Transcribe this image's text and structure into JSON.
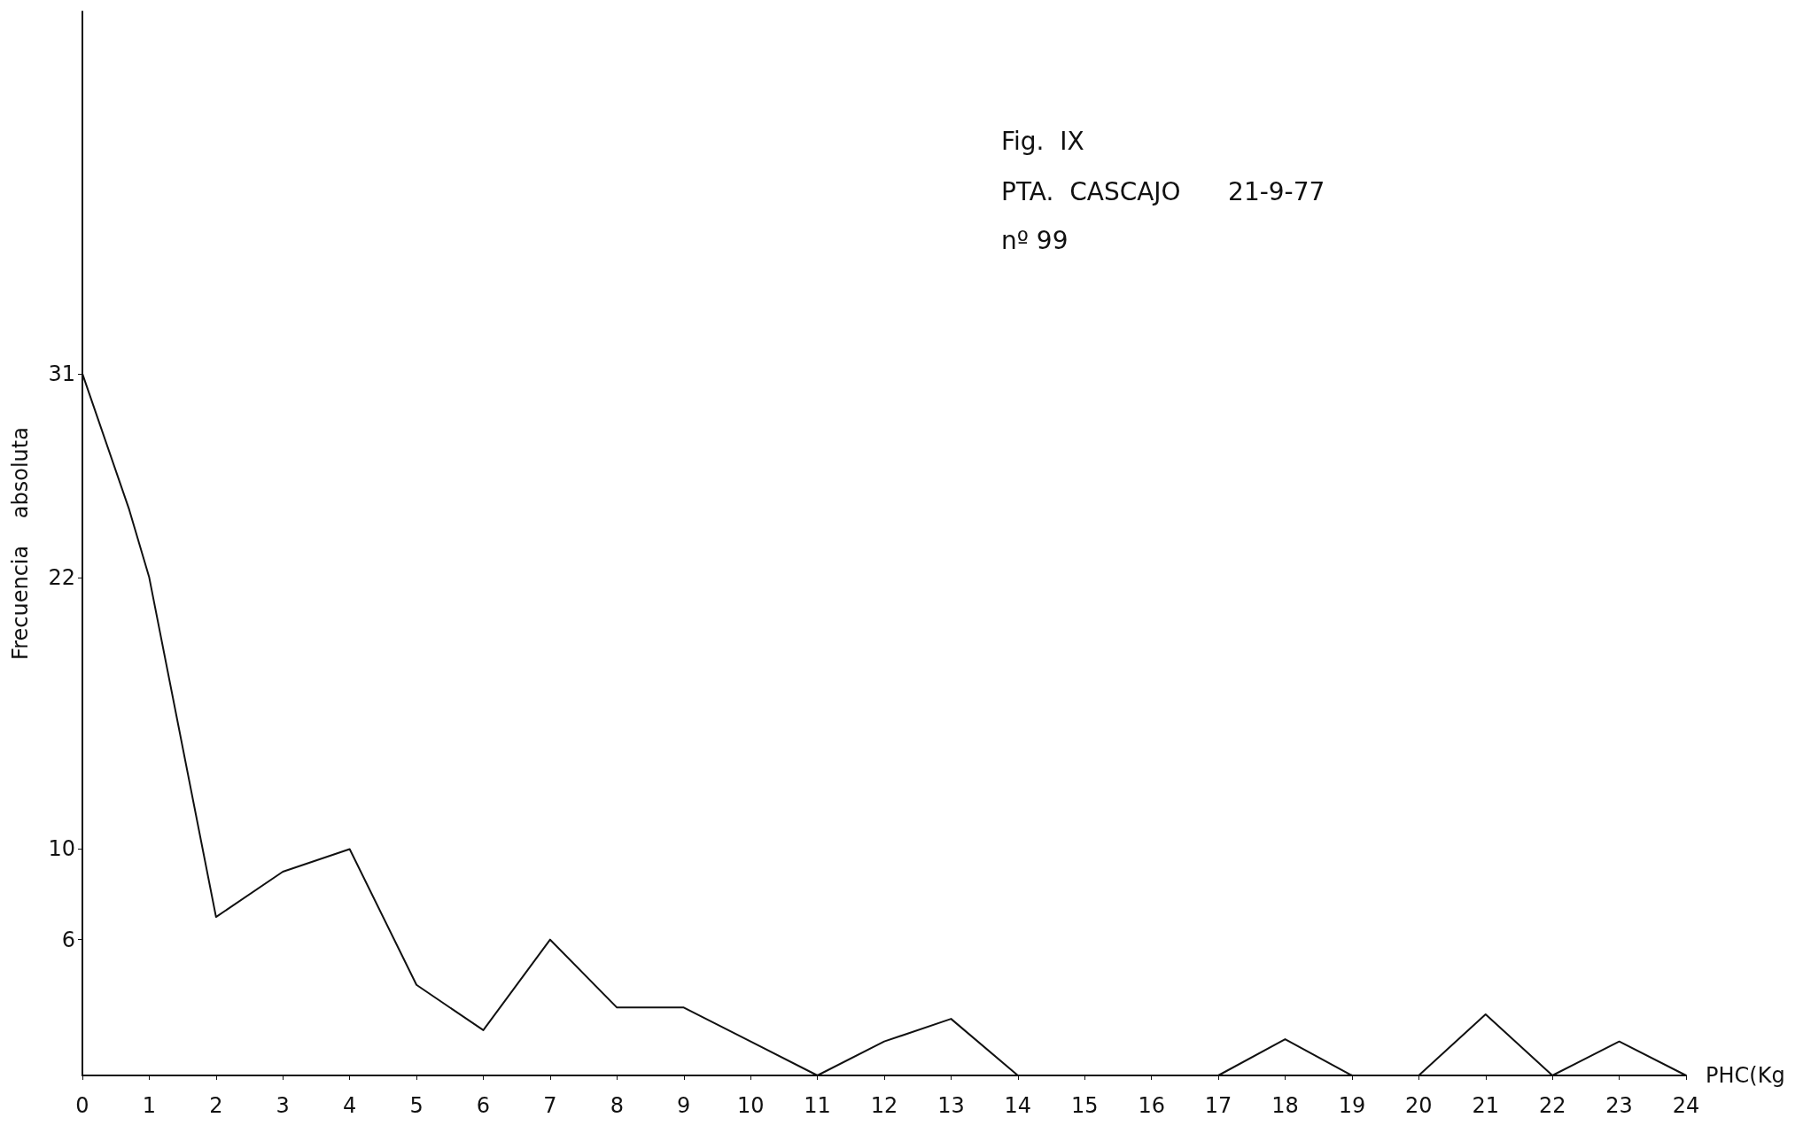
{
  "chart_data": {
    "type": "line",
    "title": "Fig.  IX",
    "subtitle": "PTA.  CASCAJO      21-9-77",
    "annotations": [
      "nº 99"
    ],
    "xlabel": "PHC(Kg",
    "ylabel": "Frecuencia    absoluta",
    "x": [
      0,
      0.7,
      1,
      2,
      3,
      4,
      5,
      6,
      7,
      8,
      9,
      10,
      11,
      12,
      13,
      14,
      17,
      18,
      19,
      20,
      21,
      22,
      23,
      24
    ],
    "series": [
      {
        "color": "#111111",
        "values": [
          31,
          25,
          22,
          7,
          9,
          10,
          4,
          2,
          6,
          3,
          3,
          1.5,
          0,
          1.5,
          2.5,
          0,
          0,
          1.6,
          0,
          0,
          2.7,
          0,
          1.5,
          0
        ]
      }
    ],
    "xlim": [
      0,
      24
    ],
    "xticks": [
      0,
      1,
      2,
      3,
      4,
      5,
      6,
      7,
      8,
      9,
      10,
      11,
      12,
      13,
      14,
      15,
      16,
      17,
      18,
      19,
      20,
      21,
      22,
      23,
      24
    ],
    "ylim": [
      0,
      47
    ],
    "yticks": [
      6,
      10,
      22,
      31
    ],
    "grid": false,
    "marker": "none",
    "line_style": "solid"
  }
}
